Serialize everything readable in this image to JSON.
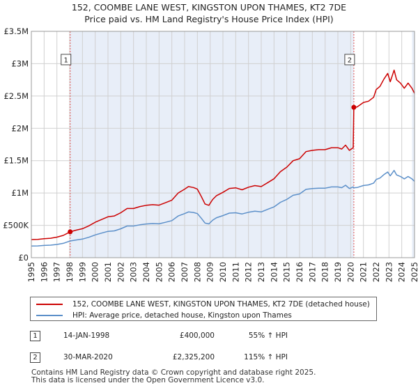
{
  "chart_data": {
    "type": "line",
    "title": "152, COOMBE LANE WEST, KINGSTON UPON THAMES, KT2 7DE",
    "subtitle": "Price paid vs. HM Land Registry's House Price Index (HPI)",
    "ylim": [
      0,
      3500000
    ],
    "xlim": [
      1995.0,
      2025.0
    ],
    "yticks": [
      0,
      500000,
      1000000,
      1500000,
      2000000,
      2500000,
      3000000,
      3500000
    ],
    "ytick_labels": [
      "£0",
      "£500K",
      "£1M",
      "£1.5M",
      "£2M",
      "£2.5M",
      "£3M",
      "£3.5M"
    ],
    "xtick_labels": [
      "1995",
      "1996",
      "1997",
      "1998",
      "1999",
      "2000",
      "2001",
      "2002",
      "2003",
      "2004",
      "2005",
      "2006",
      "2007",
      "2008",
      "2009",
      "2010",
      "2011",
      "2012",
      "2013",
      "2014",
      "2015",
      "2016",
      "2017",
      "2018",
      "2019",
      "2020",
      "2021",
      "2022",
      "2023",
      "2024",
      "2025"
    ],
    "shaded_ranges": [
      [
        1998.04,
        2020.25
      ],
      [
        2024.8,
        2025.0
      ]
    ],
    "colors": {
      "property": "#cc0000",
      "hpi": "#5b8fc9",
      "marker_line": "#e05050",
      "shade": "#e8eef8",
      "grid": "#d0d0d0"
    },
    "series": [
      {
        "name": "152, COOMBE LANE WEST, KINGSTON UPON THAMES, KT2 7DE (detached house)",
        "x": [
          1995.0,
          1995.5,
          1996.0,
          1996.5,
          1997.0,
          1997.5,
          1998.04,
          1998.5,
          1999.0,
          1999.5,
          2000.0,
          2000.5,
          2001.0,
          2001.5,
          2002.0,
          2002.5,
          2003.0,
          2003.5,
          2004.0,
          2004.5,
          2005.0,
          2005.5,
          2006.0,
          2006.5,
          2007.0,
          2007.3,
          2007.7,
          2008.0,
          2008.3,
          2008.6,
          2008.9,
          2009.2,
          2009.5,
          2010.0,
          2010.5,
          2011.0,
          2011.5,
          2012.0,
          2012.5,
          2013.0,
          2013.5,
          2014.0,
          2014.5,
          2015.0,
          2015.5,
          2016.0,
          2016.5,
          2017.0,
          2017.5,
          2018.0,
          2018.5,
          2019.0,
          2019.3,
          2019.6,
          2019.9,
          2020.2,
          2020.25,
          2020.5,
          2021.0,
          2021.4,
          2021.8,
          2022.0,
          2022.3,
          2022.6,
          2022.9,
          2023.1,
          2023.4,
          2023.6,
          2023.9,
          2024.2,
          2024.5,
          2024.8,
          2025.0
        ],
        "values": [
          280000,
          282000,
          293000,
          300000,
          318000,
          345000,
          400000,
          425000,
          448000,
          492000,
          548000,
          590000,
          632000,
          645000,
          695000,
          760000,
          760000,
          790000,
          810000,
          820000,
          812000,
          850000,
          890000,
          1000000,
          1060000,
          1100000,
          1085000,
          1060000,
          950000,
          830000,
          810000,
          900000,
          960000,
          1010000,
          1070000,
          1080000,
          1050000,
          1090000,
          1115000,
          1100000,
          1160000,
          1220000,
          1330000,
          1400000,
          1500000,
          1530000,
          1640000,
          1660000,
          1670000,
          1670000,
          1700000,
          1700000,
          1680000,
          1740000,
          1660000,
          1700000,
          2325200,
          2330000,
          2400000,
          2420000,
          2480000,
          2600000,
          2650000,
          2760000,
          2850000,
          2720000,
          2900000,
          2750000,
          2700000,
          2620000,
          2700000,
          2620000,
          2540000
        ]
      },
      {
        "name": "HPI: Average price, detached house, Kingston upon Thames",
        "x": [
          1995.0,
          1995.5,
          1996.0,
          1996.5,
          1997.0,
          1997.5,
          1998.04,
          1998.5,
          1999.0,
          1999.5,
          2000.0,
          2000.5,
          2001.0,
          2001.5,
          2002.0,
          2002.5,
          2003.0,
          2003.5,
          2004.0,
          2004.5,
          2005.0,
          2005.5,
          2006.0,
          2006.5,
          2007.0,
          2007.3,
          2007.7,
          2008.0,
          2008.3,
          2008.6,
          2008.9,
          2009.2,
          2009.5,
          2010.0,
          2010.5,
          2011.0,
          2011.5,
          2012.0,
          2012.5,
          2013.0,
          2013.5,
          2014.0,
          2014.5,
          2015.0,
          2015.5,
          2016.0,
          2016.5,
          2017.0,
          2017.5,
          2018.0,
          2018.5,
          2019.0,
          2019.3,
          2019.6,
          2019.9,
          2020.2,
          2020.25,
          2020.5,
          2021.0,
          2021.4,
          2021.8,
          2022.0,
          2022.3,
          2022.6,
          2022.9,
          2023.1,
          2023.4,
          2023.6,
          2023.9,
          2024.2,
          2024.5,
          2024.8,
          2025.0
        ],
        "values": [
          180000,
          182000,
          189000,
          194000,
          205000,
          222000,
          258000,
          274000,
          288000,
          316000,
          352000,
          380000,
          407000,
          415000,
          447000,
          490000,
          490000,
          508000,
          521000,
          528000,
          523000,
          547000,
          573000,
          645000,
          682000,
          708000,
          699000,
          682000,
          612000,
          535000,
          522000,
          580000,
          618000,
          650000,
          689000,
          695000,
          676000,
          702000,
          718000,
          708000,
          747000,
          785000,
          856000,
          901000,
          965000,
          985000,
          1056000,
          1069000,
          1075000,
          1075000,
          1094000,
          1094000,
          1082000,
          1120000,
          1069000,
          1094000,
          1081000,
          1084000,
          1116000,
          1125000,
          1153000,
          1209000,
          1232000,
          1284000,
          1325000,
          1265000,
          1349000,
          1279000,
          1256000,
          1218000,
          1256000,
          1218000,
          1181000
        ]
      }
    ],
    "markers": [
      {
        "label": "1",
        "x": 1998.04,
        "value": 400000
      },
      {
        "label": "2",
        "x": 2020.25,
        "value": 2325200
      }
    ]
  },
  "legend": {
    "property_label": "152, COOMBE LANE WEST, KINGSTON UPON THAMES, KT2 7DE (detached house)",
    "hpi_label": "HPI: Average price, detached house, Kingston upon Thames"
  },
  "transactions": [
    {
      "num": "1",
      "date": "14-JAN-1998",
      "price": "£400,000",
      "hpi": "55% ↑ HPI"
    },
    {
      "num": "2",
      "date": "30-MAR-2020",
      "price": "£2,325,200",
      "hpi": "115% ↑ HPI"
    }
  ],
  "footer": {
    "line1": "Contains HM Land Registry data © Crown copyright and database right 2025.",
    "line2": "This data is licensed under the Open Government Licence v3.0."
  }
}
